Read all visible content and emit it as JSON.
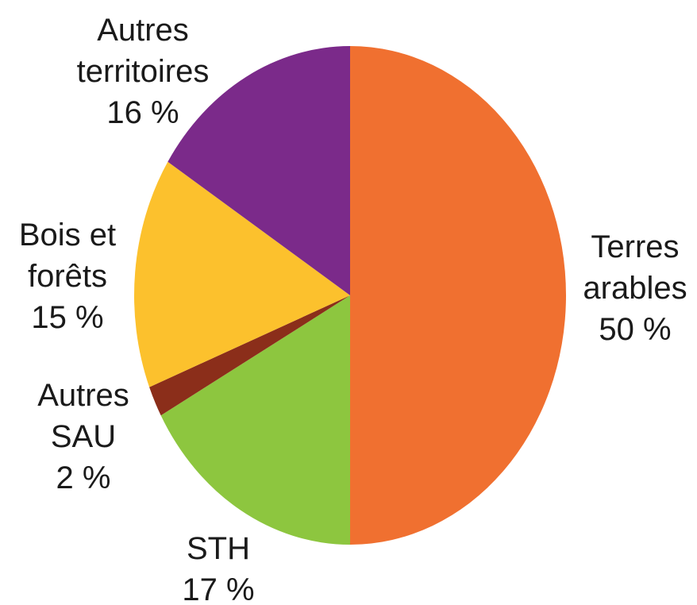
{
  "chart_data": {
    "type": "pie",
    "categories": [
      "Terres arables",
      "STH",
      "Autres SAU",
      "Bois et forêts",
      "Autres territoires"
    ],
    "values": [
      50,
      17,
      2,
      15,
      16
    ],
    "value_labels": [
      "50 %",
      "17 %",
      "2 %",
      "15 %",
      "16 %"
    ],
    "colors": [
      "#f07030",
      "#8dc63f",
      "#8b2e1a",
      "#fcc12d",
      "#7b2a8a"
    ]
  }
}
